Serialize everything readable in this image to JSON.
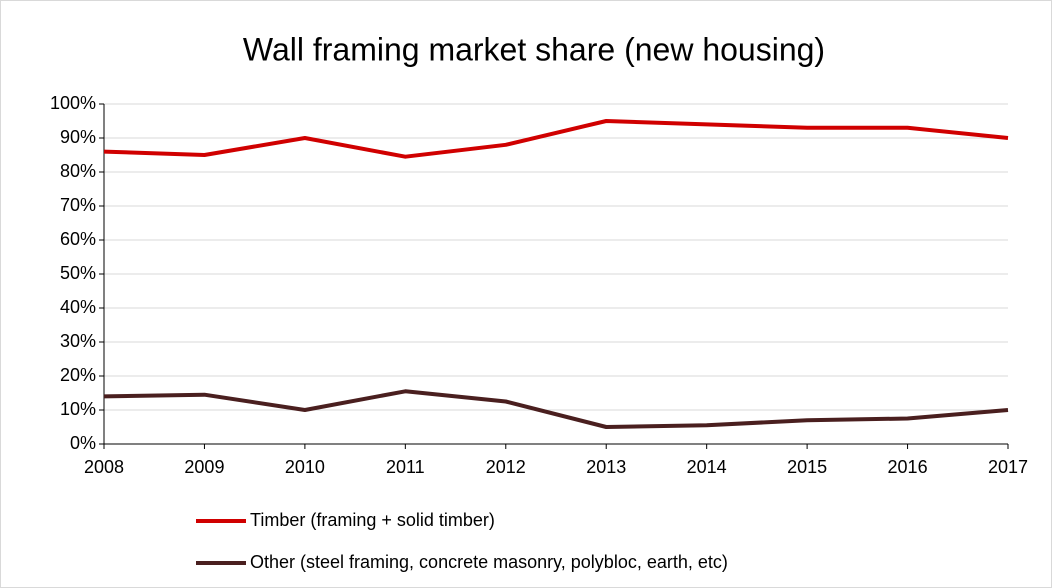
{
  "chart_data": {
    "type": "line",
    "title": "Wall framing market share (new housing)",
    "x": [
      2008,
      2009,
      2010,
      2011,
      2012,
      2013,
      2014,
      2015,
      2016,
      2017
    ],
    "xlim": [
      2008,
      2017
    ],
    "xticks": [
      2008,
      2009,
      2010,
      2011,
      2012,
      2013,
      2014,
      2015,
      2016,
      2017
    ],
    "ylim": [
      0,
      100
    ],
    "yticks": [
      {
        "value": 0,
        "label": "0%"
      },
      {
        "value": 10,
        "label": "10%"
      },
      {
        "value": 20,
        "label": "20%"
      },
      {
        "value": 30,
        "label": "30%"
      },
      {
        "value": 40,
        "label": "40%"
      },
      {
        "value": 50,
        "label": "50%"
      },
      {
        "value": 60,
        "label": "60%"
      },
      {
        "value": 70,
        "label": "70%"
      },
      {
        "value": 80,
        "label": "80%"
      },
      {
        "value": 90,
        "label": "90%"
      },
      {
        "value": 100,
        "label": "100%"
      }
    ],
    "grid": true,
    "series": [
      {
        "name": "Timber (framing + solid timber)",
        "color": "#d00000",
        "values": [
          86,
          85,
          90,
          84.5,
          88,
          95,
          94,
          93,
          93,
          90
        ]
      },
      {
        "name": "Other (steel framing, concrete masonry, polybloc, earth, etc)",
        "color": "#4a1f1f",
        "values": [
          14,
          14.5,
          10,
          15.5,
          12.5,
          5,
          5.5,
          7,
          7.5,
          10
        ]
      }
    ]
  }
}
